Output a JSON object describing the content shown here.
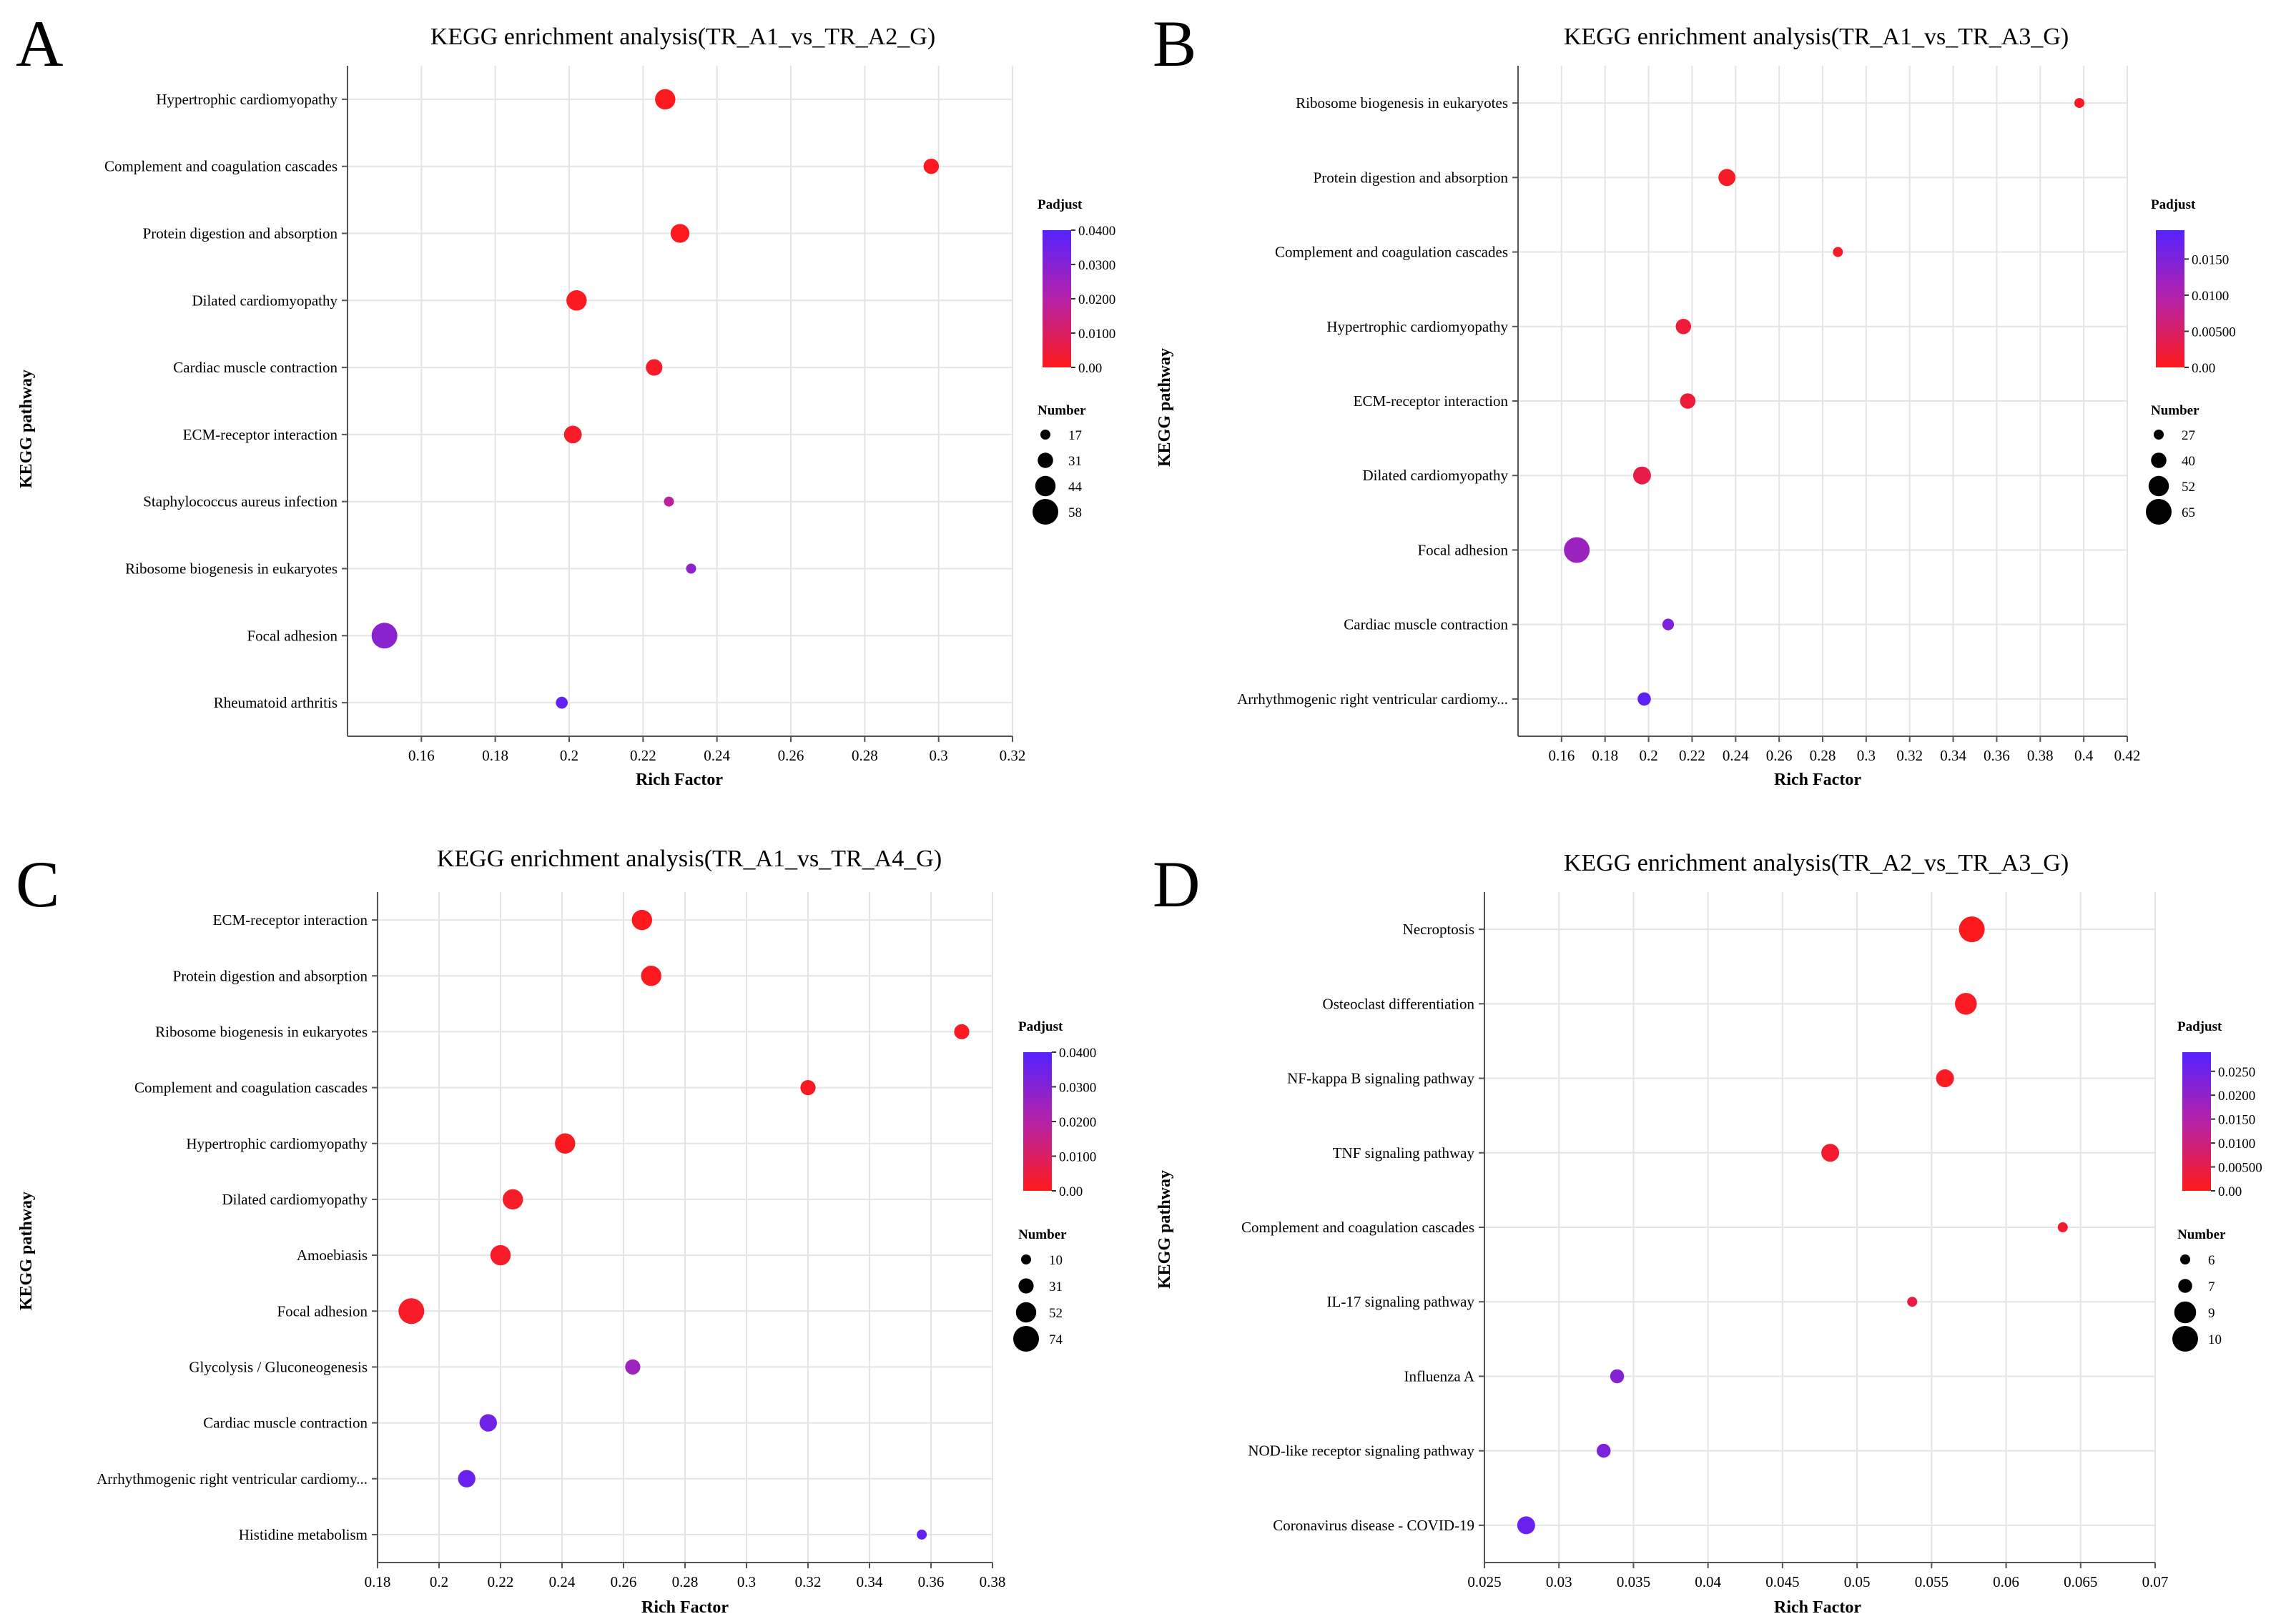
{
  "colors": {
    "low": "#ff1a1a",
    "mid": "#b522a8",
    "high": "#5522ff",
    "grid": "#e4e4e4",
    "axis": "#555555"
  },
  "chart_data": [
    {
      "type": "scatter",
      "panel": "A",
      "title": "KEGG enrichment analysis(TR_A1_vs_TR_A2_G)",
      "xlabel": "Rich Factor",
      "ylabel": "KEGG pathway",
      "xlim": [
        0.14,
        0.32
      ],
      "xticks": [
        "0.16",
        "0.18",
        "0.2",
        "0.22",
        "0.24",
        "0.26",
        "0.28",
        "0.3",
        "0.32"
      ],
      "grid": true,
      "categories": [
        "Hypertrophic cardiomyopathy",
        "Complement and coagulation cascades",
        "Protein digestion and absorption",
        "Dilated cardiomyopathy",
        "Cardiac muscle contraction",
        "ECM-receptor interaction",
        "Staphylococcus aureus infection",
        "Ribosome biogenesis in eukaryotes",
        "Focal adhesion",
        "Rheumatoid arthritis"
      ],
      "rich_factor": [
        0.226,
        0.298,
        0.23,
        0.202,
        0.223,
        0.201,
        0.227,
        0.233,
        0.15,
        0.198
      ],
      "number": [
        44,
        31,
        40,
        44,
        34,
        37,
        17,
        17,
        58,
        22
      ],
      "padjust": [
        0.0005,
        0.001,
        0.0008,
        0.001,
        0.002,
        0.002,
        0.018,
        0.028,
        0.029,
        0.037
      ],
      "padjust_max": 0.04,
      "padjust_legend": {
        "title": "Padjust",
        "ticks": [
          "0.0400",
          "0.0300",
          "0.0200",
          "0.0100",
          "0.00"
        ]
      },
      "number_legend": {
        "title": "Number",
        "values": [
          17,
          31,
          44,
          58
        ],
        "labels": [
          "17",
          "31",
          "44",
          "58"
        ]
      }
    },
    {
      "type": "scatter",
      "panel": "B",
      "title": "KEGG enrichment analysis(TR_A1_vs_TR_A3_G)",
      "xlabel": "Rich Factor",
      "ylabel": "KEGG pathway",
      "xlim": [
        0.14,
        0.42
      ],
      "xticks": [
        "0.16",
        "0.18",
        "0.2",
        "0.22",
        "0.24",
        "0.26",
        "0.28",
        "0.3",
        "0.32",
        "0.34",
        "0.36",
        "0.38",
        "0.4",
        "0.42"
      ],
      "grid": true,
      "categories": [
        "Ribosome biogenesis in eukaryotes",
        "Protein digestion and absorption",
        "Complement and coagulation cascades",
        "Hypertrophic cardiomyopathy",
        "ECM-receptor interaction",
        "Dilated cardiomyopathy",
        "Focal adhesion",
        "Cardiac muscle contraction",
        "Arrhythmogenic right ventricular cardiomy..."
      ],
      "rich_factor": [
        0.398,
        0.236,
        0.287,
        0.216,
        0.218,
        0.197,
        0.167,
        0.209,
        0.198
      ],
      "number": [
        27,
        44,
        27,
        40,
        40,
        46,
        65,
        31,
        35
      ],
      "padjust": [
        0.0005,
        0.001,
        0.001,
        0.002,
        0.002,
        0.003,
        0.012,
        0.015,
        0.018
      ],
      "padjust_max": 0.019,
      "padjust_legend": {
        "title": "Padjust",
        "ticks": [
          "0.0150",
          "0.0100",
          "0.00500",
          "0.00"
        ]
      },
      "number_legend": {
        "title": "Number",
        "values": [
          27,
          40,
          52,
          65
        ],
        "labels": [
          "27",
          "40",
          "52",
          "65"
        ]
      }
    },
    {
      "type": "scatter",
      "panel": "C",
      "title": "KEGG enrichment analysis(TR_A1_vs_TR_A4_G)",
      "xlabel": "Rich Factor",
      "ylabel": "KEGG pathway",
      "xlim": [
        0.18,
        0.38
      ],
      "xticks": [
        "0.18",
        "0.2",
        "0.22",
        "0.24",
        "0.26",
        "0.28",
        "0.3",
        "0.32",
        "0.34",
        "0.36",
        "0.38"
      ],
      "grid": true,
      "categories": [
        "ECM-receptor interaction",
        "Protein digestion and absorption",
        "Ribosome biogenesis in eukaryotes",
        "Complement and coagulation cascades",
        "Hypertrophic cardiomyopathy",
        "Dilated cardiomyopathy",
        "Amoebiasis",
        "Focal adhesion",
        "Glycolysis / Gluconeogenesis",
        "Cardiac muscle contraction",
        "Arrhythmogenic right ventricular cardiomy...",
        "Histidine metabolism"
      ],
      "rich_factor": [
        0.266,
        0.269,
        0.37,
        0.32,
        0.241,
        0.224,
        0.22,
        0.191,
        0.263,
        0.216,
        0.209,
        0.357
      ],
      "number": [
        52,
        52,
        31,
        31,
        52,
        52,
        52,
        74,
        31,
        40,
        40,
        10
      ],
      "padjust": [
        0.0005,
        0.0005,
        0.001,
        0.001,
        0.001,
        0.002,
        0.002,
        0.002,
        0.025,
        0.034,
        0.036,
        0.037
      ],
      "padjust_max": 0.04,
      "padjust_legend": {
        "title": "Padjust",
        "ticks": [
          "0.0400",
          "0.0300",
          "0.0200",
          "0.0100",
          "0.00"
        ]
      },
      "number_legend": {
        "title": "Number",
        "values": [
          10,
          31,
          52,
          74
        ],
        "labels": [
          "10",
          "31",
          "52",
          "74"
        ]
      }
    },
    {
      "type": "scatter",
      "panel": "D",
      "title": "KEGG enrichment analysis(TR_A2_vs_TR_A3_G)",
      "xlabel": "Rich Factor",
      "ylabel": "KEGG pathway",
      "xlim": [
        0.025,
        0.07
      ],
      "xticks": [
        "0.025",
        "0.03",
        "0.035",
        "0.04",
        "0.045",
        "0.05",
        "0.055",
        "0.06",
        "0.065",
        "0.07"
      ],
      "grid": true,
      "categories": [
        "Necroptosis",
        "Osteoclast differentiation",
        "NF-kappa B signaling pathway",
        "TNF signaling pathway",
        "Complement and coagulation cascades",
        "IL-17 signaling pathway",
        "Influenza A",
        "NOD-like receptor signaling pathway",
        "Coronavirus disease - COVID-19"
      ],
      "rich_factor": [
        0.0577,
        0.0573,
        0.0559,
        0.0482,
        0.0638,
        0.0537,
        0.0339,
        0.033,
        0.0278
      ],
      "number": [
        10,
        9,
        8,
        8,
        6,
        6,
        7,
        7,
        8
      ],
      "padjust": [
        0.0005,
        0.001,
        0.001,
        0.002,
        0.002,
        0.004,
        0.022,
        0.023,
        0.026
      ],
      "padjust_max": 0.029,
      "padjust_legend": {
        "title": "Padjust",
        "ticks": [
          "0.0250",
          "0.0200",
          "0.0150",
          "0.0100",
          "0.00500",
          "0.00"
        ]
      },
      "number_legend": {
        "title": "Number",
        "values": [
          6,
          7,
          9,
          10
        ],
        "labels": [
          "6",
          "7",
          "9",
          "10"
        ]
      }
    }
  ]
}
